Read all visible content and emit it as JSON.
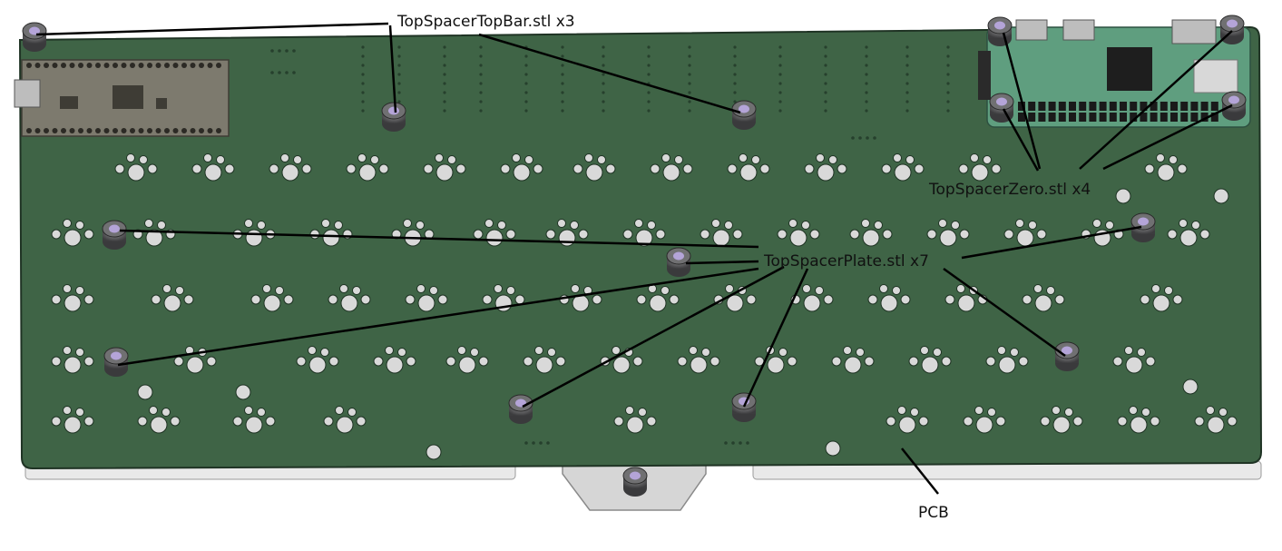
{
  "labels": {
    "top_bar": "TopSpacerTopBar.stl x3",
    "zero": "TopSpacerZero.stl x4",
    "plate": "TopSpacerPlate.stl x7",
    "pcb": "PCB"
  },
  "colors": {
    "pcb_green": "#3f6446",
    "pcb_green_dark": "#2c4a33",
    "pico_board": "#7d7a6e",
    "pi_zero_board": "#5f9e7f",
    "spacer": "#5e5e60",
    "spacer_hole": "#b4a4d8",
    "case_edge": "#e6e6e6",
    "leader_line": "#000000"
  },
  "icons": [
    "raspberry-pi-pico-board",
    "raspberry-pi-zero-board",
    "spacer-standoff-icon",
    "switch-hole-icon"
  ]
}
